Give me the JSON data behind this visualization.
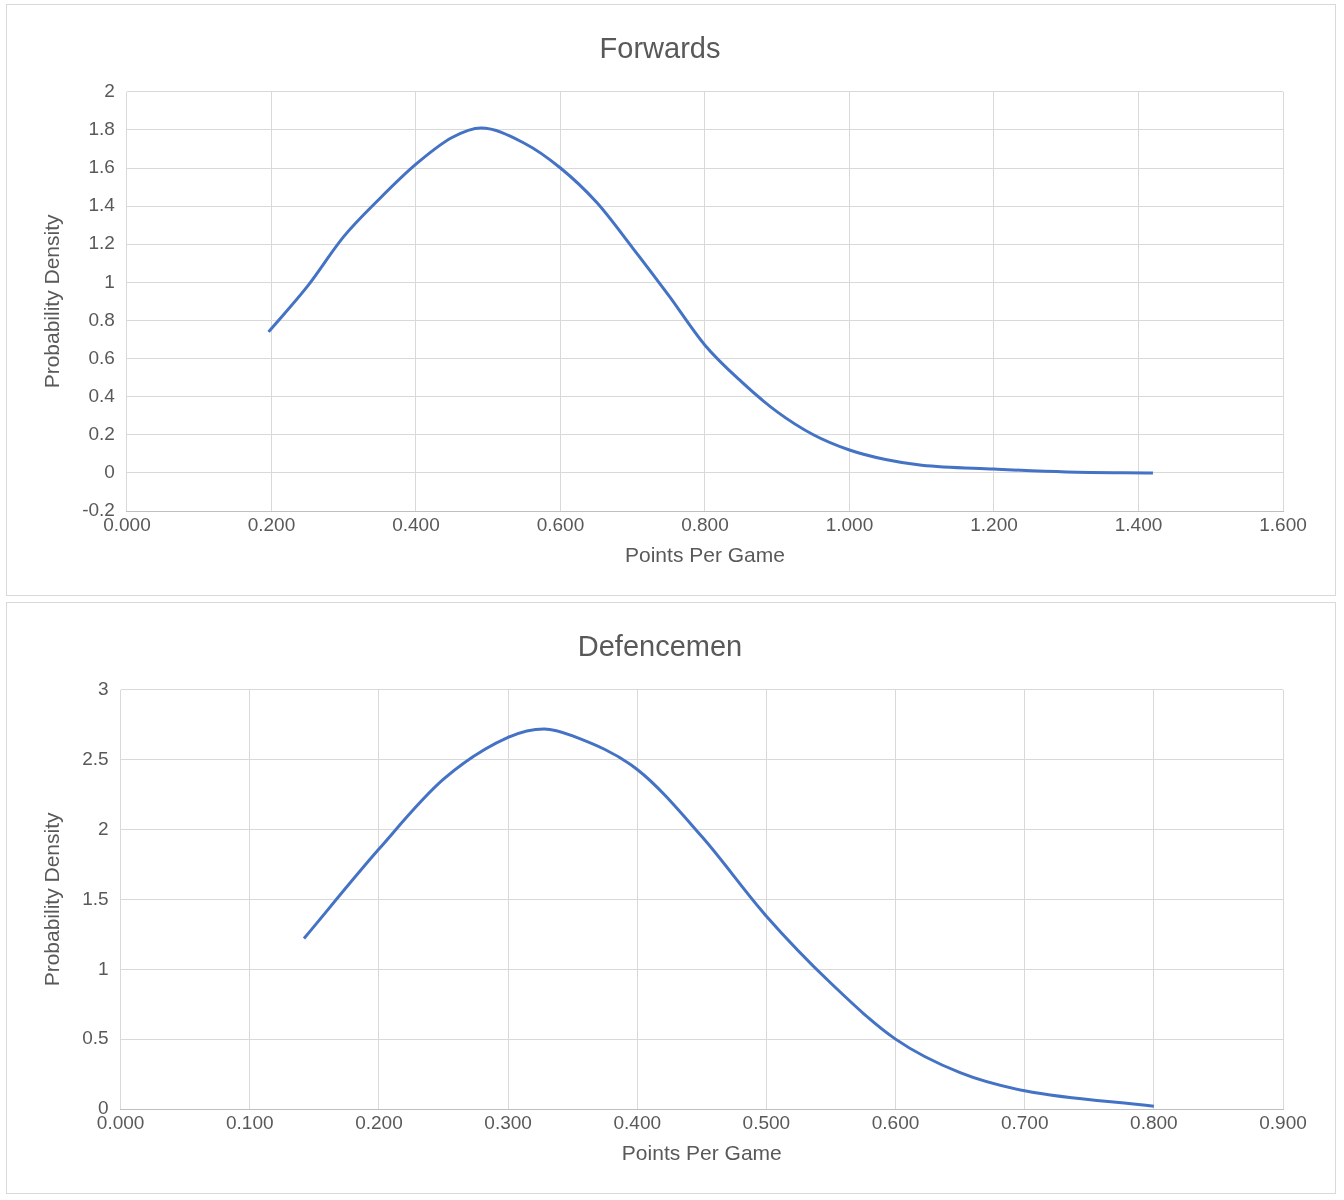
{
  "chart_data": [
    {
      "type": "line",
      "title": "Forwards",
      "xlabel": "Points Per Game",
      "ylabel": "Probability Density",
      "color": "#4472c4",
      "marker": "none",
      "grid": true,
      "x": [
        0.196,
        0.25,
        0.3,
        0.35,
        0.4,
        0.45,
        0.49,
        0.55,
        0.6,
        0.65,
        0.7,
        0.75,
        0.8,
        0.85,
        0.9,
        0.95,
        1.0,
        1.05,
        1.1,
        1.2,
        1.3,
        1.42
      ],
      "values": [
        0.74,
        0.98,
        1.24,
        1.44,
        1.62,
        1.76,
        1.81,
        1.73,
        1.6,
        1.42,
        1.18,
        0.93,
        0.67,
        0.48,
        0.32,
        0.2,
        0.12,
        0.07,
        0.04,
        0.02,
        0.005,
        0
      ],
      "xlim": [
        0,
        1.6
      ],
      "xticks": [
        {
          "value": 0,
          "label": "0.000"
        },
        {
          "value": 0.2,
          "label": "0.200"
        },
        {
          "value": 0.4,
          "label": "0.400"
        },
        {
          "value": 0.6,
          "label": "0.600"
        },
        {
          "value": 0.8,
          "label": "0.800"
        },
        {
          "value": 1.0,
          "label": "1.000"
        },
        {
          "value": 1.2,
          "label": "1.200"
        },
        {
          "value": 1.4,
          "label": "1.400"
        },
        {
          "value": 1.6,
          "label": "1.600"
        }
      ],
      "ylim": [
        -0.2,
        2
      ],
      "yticks": [
        -0.2,
        0,
        0.2,
        0.4,
        0.6,
        0.8,
        1,
        1.2,
        1.4,
        1.6,
        1.8,
        2
      ]
    },
    {
      "type": "line",
      "title": "Defencemen",
      "xlabel": "Points Per Game",
      "ylabel": "Probability Density",
      "color": "#4472c4",
      "marker": "none",
      "grid": true,
      "x": [
        0.142,
        0.2,
        0.25,
        0.3,
        0.328,
        0.35,
        0.4,
        0.45,
        0.5,
        0.55,
        0.6,
        0.65,
        0.7,
        0.8
      ],
      "values": [
        1.22,
        1.86,
        2.36,
        2.66,
        2.72,
        2.67,
        2.43,
        1.95,
        1.38,
        0.9,
        0.5,
        0.26,
        0.13,
        0.02
      ],
      "xlim": [
        0,
        0.9
      ],
      "xticks": [
        {
          "value": 0,
          "label": "0.000"
        },
        {
          "value": 0.1,
          "label": "0.100"
        },
        {
          "value": 0.2,
          "label": "0.200"
        },
        {
          "value": 0.3,
          "label": "0.300"
        },
        {
          "value": 0.4,
          "label": "0.400"
        },
        {
          "value": 0.5,
          "label": "0.500"
        },
        {
          "value": 0.6,
          "label": "0.600"
        },
        {
          "value": 0.7,
          "label": "0.700"
        },
        {
          "value": 0.8,
          "label": "0.800"
        },
        {
          "value": 0.9,
          "label": "0.900"
        }
      ],
      "ylim": [
        0,
        3
      ],
      "yticks": [
        0,
        0.5,
        1,
        1.5,
        2,
        2.5,
        3
      ]
    }
  ]
}
